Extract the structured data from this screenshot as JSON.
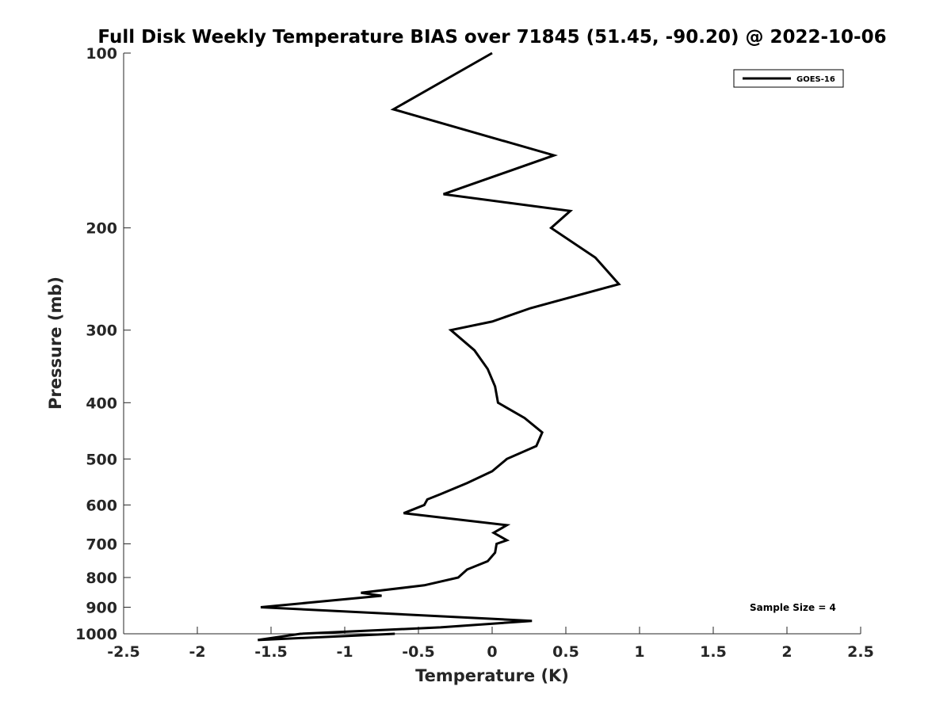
{
  "chart_data": {
    "type": "line",
    "title": "Full Disk Weekly Temperature BIAS over 71845 (51.45, -90.20) @ 2022-10-06",
    "xlabel": "Temperature (K)",
    "ylabel": "Pressure (mb)",
    "xlim": [
      -2.5,
      2.5
    ],
    "ylim": [
      100,
      1000
    ],
    "y_scale": "log",
    "y_reversed": true,
    "x_ticks": [
      "-2.5",
      "-2",
      "-1.5",
      "-1",
      "-0.5",
      "0",
      "0.5",
      "1",
      "1.5",
      "2",
      "2.5"
    ],
    "x_tick_values": [
      -2.5,
      -2,
      -1.5,
      -1,
      -0.5,
      0,
      0.5,
      1,
      1.5,
      2,
      2.5
    ],
    "y_ticks": [
      "100",
      "200",
      "300",
      "400",
      "500",
      "600",
      "700",
      "800",
      "900",
      "1000"
    ],
    "y_tick_values": [
      100,
      200,
      300,
      400,
      500,
      600,
      700,
      800,
      900,
      1000
    ],
    "grid": false,
    "legend_position": "top-right",
    "annotation": "Sample Size = 4",
    "series": [
      {
        "name": "GOES-16",
        "color": "#000000",
        "points": [
          [
            0.0,
            100
          ],
          [
            -0.67,
            125
          ],
          [
            0.42,
            150
          ],
          [
            -0.33,
            175
          ],
          [
            0.53,
            187
          ],
          [
            0.4,
            200
          ],
          [
            0.7,
            225
          ],
          [
            0.86,
            250
          ],
          [
            0.26,
            275
          ],
          [
            0.0,
            290
          ],
          [
            -0.28,
            300
          ],
          [
            -0.12,
            325
          ],
          [
            -0.03,
            350
          ],
          [
            0.02,
            375
          ],
          [
            0.04,
            400
          ],
          [
            0.22,
            425
          ],
          [
            0.34,
            450
          ],
          [
            0.3,
            475
          ],
          [
            0.1,
            500
          ],
          [
            0.0,
            525
          ],
          [
            -0.17,
            550
          ],
          [
            -0.35,
            575
          ],
          [
            -0.44,
            587
          ],
          [
            -0.46,
            600
          ],
          [
            -0.6,
            620
          ],
          [
            0.1,
            650
          ],
          [
            0.01,
            670
          ],
          [
            0.1,
            690
          ],
          [
            0.03,
            700
          ],
          [
            0.02,
            725
          ],
          [
            -0.03,
            750
          ],
          [
            -0.17,
            775
          ],
          [
            -0.23,
            800
          ],
          [
            -0.46,
            825
          ],
          [
            -0.89,
            850
          ],
          [
            -0.75,
            860
          ],
          [
            -1.57,
            900
          ],
          [
            0.27,
            950
          ],
          [
            -0.35,
            975
          ],
          [
            -1.3,
            1000
          ],
          [
            -1.59,
            1025
          ],
          [
            -0.66,
            1000
          ]
        ]
      }
    ]
  }
}
